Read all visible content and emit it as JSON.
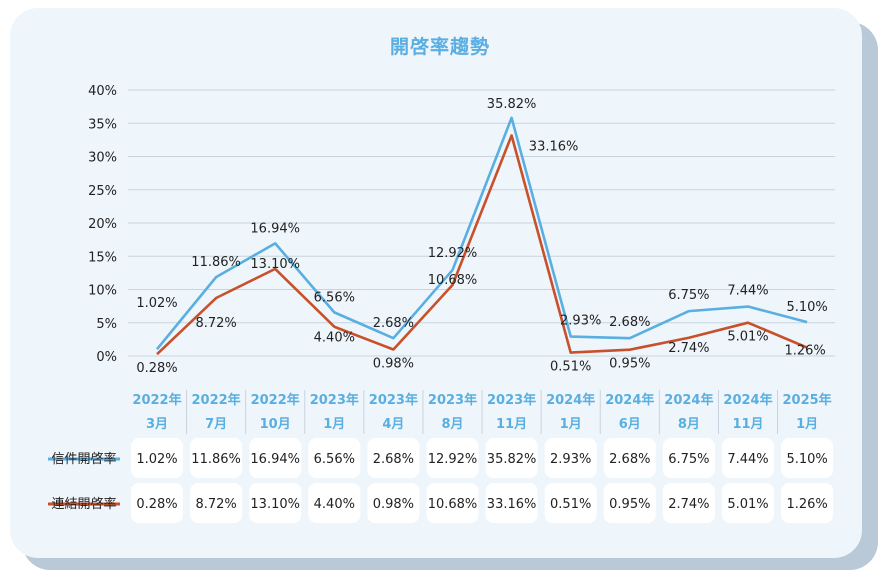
{
  "chart_data": {
    "type": "line",
    "title": "開啓率趨勢",
    "categories": [
      [
        "2022年",
        "3月"
      ],
      [
        "2022年",
        "7月"
      ],
      [
        "2022年",
        "10月"
      ],
      [
        "2023年",
        "1月"
      ],
      [
        "2023年",
        "4月"
      ],
      [
        "2023年",
        "8月"
      ],
      [
        "2023年",
        "11月"
      ],
      [
        "2024年",
        "1月"
      ],
      [
        "2024年",
        "6月"
      ],
      [
        "2024年",
        "8月"
      ],
      [
        "2024年",
        "11月"
      ],
      [
        "2025年",
        "1月"
      ]
    ],
    "series": [
      {
        "name": "信件開啓率",
        "color": "#5aaee0",
        "values": [
          1.02,
          11.86,
          16.94,
          6.56,
          2.68,
          12.92,
          35.82,
          2.93,
          2.68,
          6.75,
          7.44,
          5.1
        ],
        "labels": [
          "1.02%",
          "11.86%",
          "16.94%",
          "6.56%",
          "2.68%",
          "12.92%",
          "35.82%",
          "2.93%",
          "2.68%",
          "6.75%",
          "7.44%",
          "5.10%"
        ]
      },
      {
        "name": "連結開啓率",
        "color": "#c8502a",
        "values": [
          0.28,
          8.72,
          13.1,
          4.4,
          0.98,
          10.68,
          33.16,
          0.51,
          0.95,
          2.74,
          5.01,
          1.26
        ],
        "labels": [
          "0.28%",
          "8.72%",
          "13.10%",
          "4.40%",
          "0.98%",
          "10.68%",
          "33.16%",
          "0.51%",
          "0.95%",
          "2.74%",
          "5.01%",
          "1.26%"
        ]
      }
    ],
    "yticks": [
      "0%",
      "5%",
      "10%",
      "15%",
      "20%",
      "25%",
      "30%",
      "35%",
      "40%"
    ],
    "ylim": [
      0,
      40
    ],
    "grid": true,
    "legend": "data-table"
  }
}
